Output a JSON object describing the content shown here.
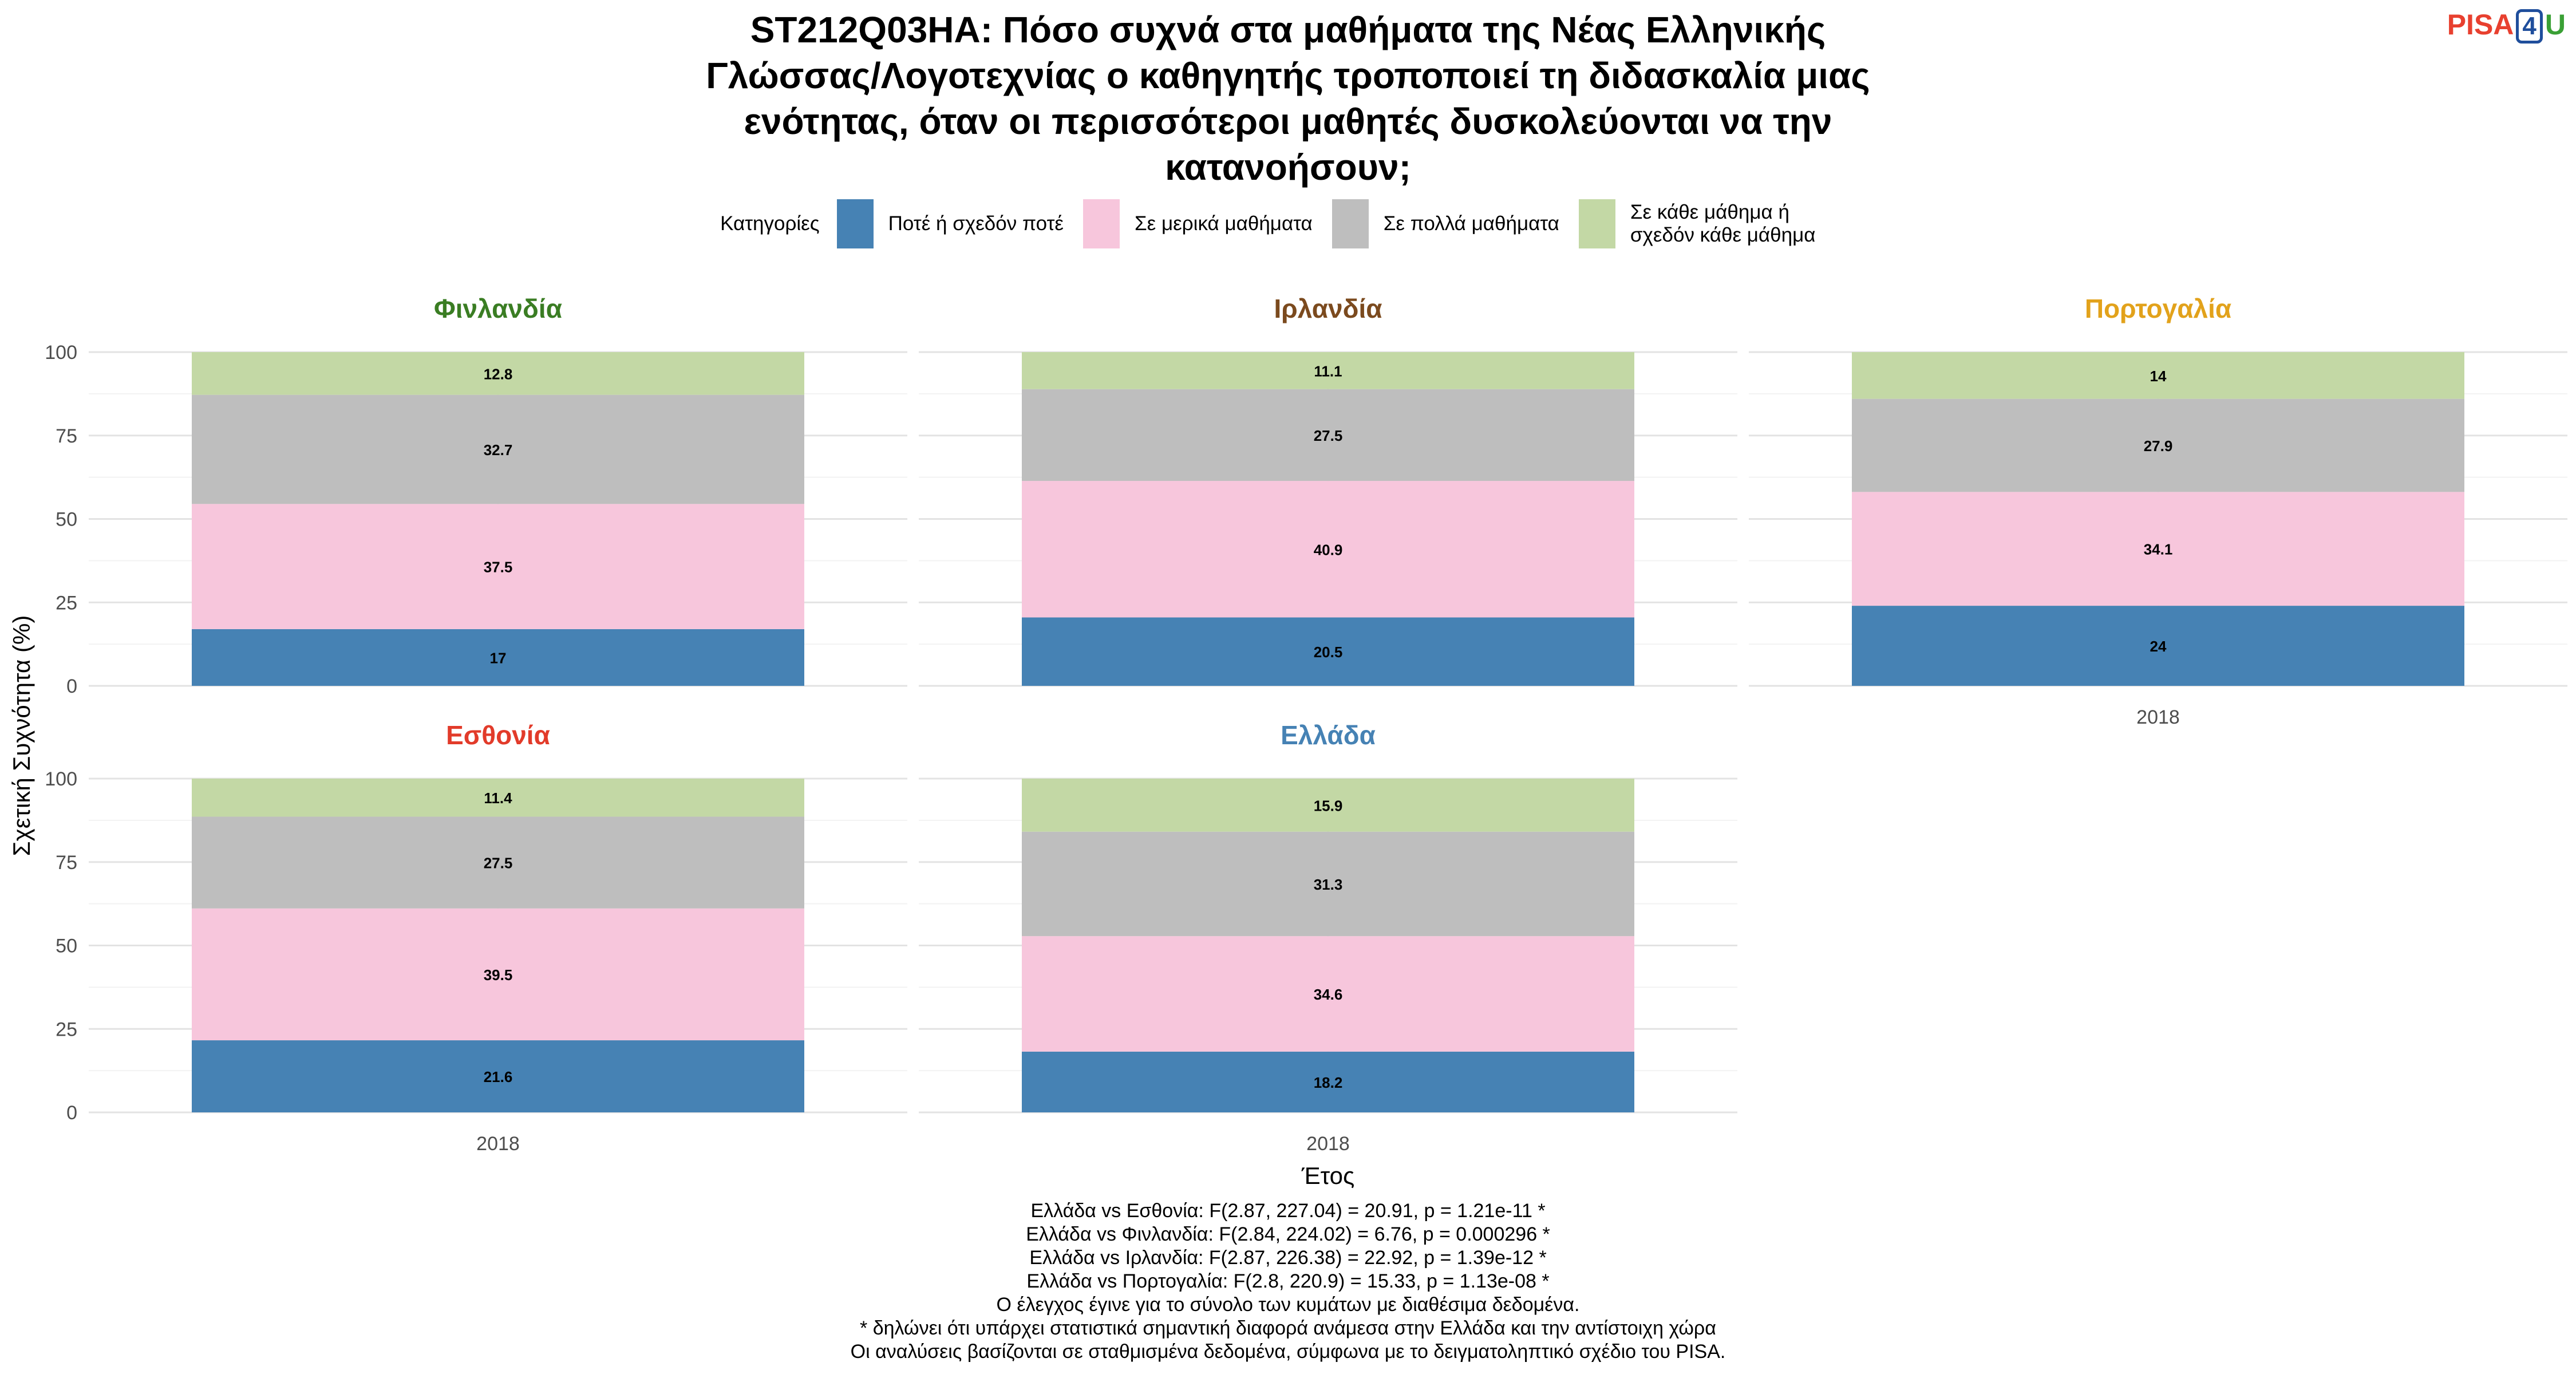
{
  "title_lines": [
    "ST212Q03HA: Πόσο συχνά στα μαθήματα της Νέας Ελληνικής",
    "Γλώσσας/Λογοτεχνίας ο καθηγητής τροποποιεί τη διδασκαλία μιας",
    "ενότητας, όταν οι περισσότεροι μαθητές δυσκολεύονται να την",
    "κατανοήσουν;"
  ],
  "logo": {
    "part1": "PISA",
    "part2": "4",
    "part3": "U"
  },
  "legend": {
    "title": "Κατηγορίες",
    "items": [
      {
        "label": "Ποτέ ή σχεδόν ποτέ",
        "color": "#4682b4"
      },
      {
        "label": "Σε μερικά μαθήματα",
        "color": "#f7c6dc"
      },
      {
        "label": "Σε πολλά μαθήματα",
        "color": "#bebebe"
      },
      {
        "label": "Σε κάθε μάθημα ή σχεδόν κάθε μάθημα",
        "color": "#c3d8a5"
      }
    ]
  },
  "chart_data": {
    "type": "bar",
    "stacked": true,
    "ylabel": "Σχετική Συχνότητα (%)",
    "xlabel": "Έτος",
    "ylim": [
      0,
      100
    ],
    "yticks": [
      0,
      25,
      50,
      75,
      100
    ],
    "categories": [
      "2018"
    ],
    "panels": [
      {
        "name": "Φινλανδία",
        "color": "#3a7d23",
        "values": [
          17,
          37.5,
          32.7,
          12.8
        ],
        "labels": [
          "17",
          "37.5",
          "32.7",
          "12.8"
        ]
      },
      {
        "name": "Ιρλανδία",
        "color": "#7b4a1e",
        "values": [
          20.5,
          40.9,
          27.5,
          11.1
        ],
        "labels": [
          "20.5",
          "40.9",
          "27.5",
          "11.1"
        ]
      },
      {
        "name": "Πορτογαλία",
        "color": "#e2a21b",
        "values": [
          24,
          34.1,
          27.9,
          14
        ],
        "labels": [
          "24",
          "34.1",
          "27.9",
          "14"
        ]
      },
      {
        "name": "Εσθονία",
        "color": "#e23b2a",
        "values": [
          21.6,
          39.5,
          27.5,
          11.4
        ],
        "labels": [
          "21.6",
          "39.5",
          "27.5",
          "11.4"
        ]
      },
      {
        "name": "Ελλάδα",
        "color": "#4682b4",
        "values": [
          18.2,
          34.6,
          31.3,
          15.9
        ],
        "labels": [
          "18.2",
          "34.6",
          "31.3",
          "15.9"
        ]
      }
    ]
  },
  "footer_lines": [
    "Ελλάδα vs Εσθονία: F(2.87, 227.04) = 20.91, p = 1.21e-11 *",
    "Ελλάδα vs Φινλανδία: F(2.84, 224.02) = 6.76, p = 0.000296 *",
    "Ελλάδα vs Ιρλανδία: F(2.87, 226.38) = 22.92, p = 1.39e-12 *",
    "Ελλάδα vs Πορτογαλία: F(2.8, 220.9) = 15.33, p = 1.13e-08 *",
    "Ο έλεγχος έγινε για το σύνολο των κυμάτων με διαθέσιμα δεδομένα.",
    "* δηλώνει ότι υπάρχει στατιστικά σημαντική διαφορά ανάμεσα στην Ελλάδα και την αντίστοιχη χώρα",
    "Οι αναλύσεις βασίζονται σε σταθμισμένα δεδομένα, σύμφωνα με το δειγματοληπτικό σχέδιο του PISA."
  ]
}
